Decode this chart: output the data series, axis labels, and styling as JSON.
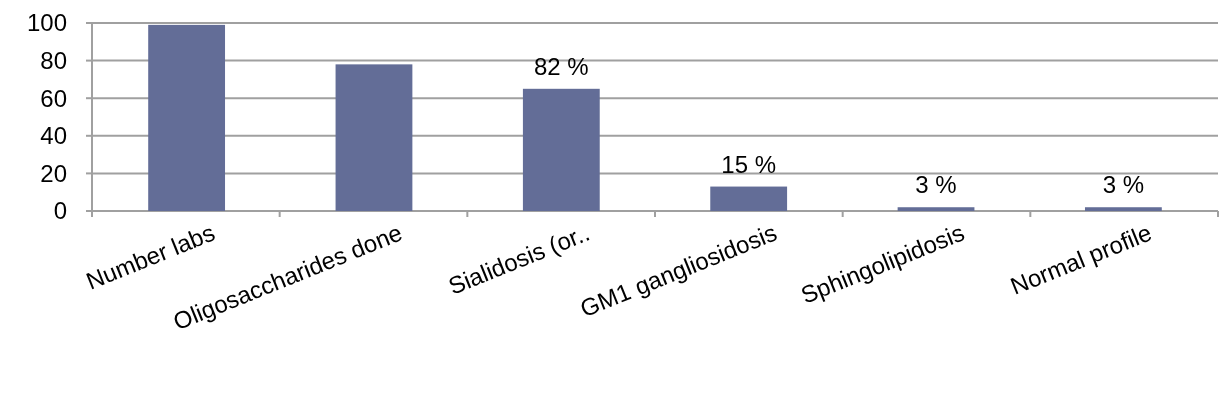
{
  "chart_data": {
    "type": "bar",
    "categories": [
      "Number labs",
      "Oligosaccharides done",
      "Sialidosis (or..",
      "GM1 gangliosidosis",
      "Sphingolipidosis",
      "Normal profile"
    ],
    "values": [
      99,
      78,
      65,
      13,
      2,
      2
    ],
    "annotations": [
      {
        "text": "82 %",
        "x": "Sialidosis (or..",
        "y": 65
      },
      {
        "text": "15 %",
        "x": "GM1 gangliosidosis",
        "y": 13
      },
      {
        "text": "3 %",
        "x": "Sphingolipidosis",
        "y": 2
      },
      {
        "text": "3 %",
        "x": "Normal profile",
        "y": 2
      }
    ],
    "color": "#636d97",
    "ylim": [
      0,
      100
    ],
    "yticks": [
      0,
      20,
      40,
      60,
      80,
      100
    ],
    "grid": "y"
  }
}
